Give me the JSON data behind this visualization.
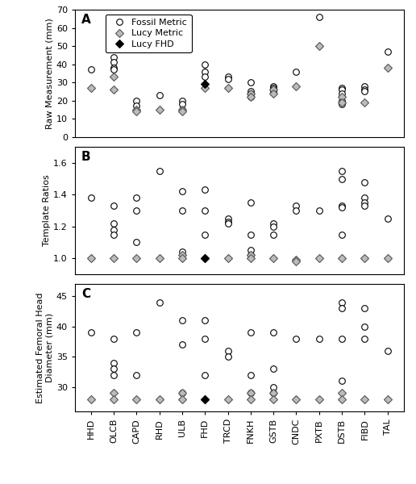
{
  "categories": [
    "HHD",
    "OLCB",
    "CAPD",
    "RHD",
    "ULB",
    "FHD",
    "TRCD",
    "FNKH",
    "GSTB",
    "CNDC",
    "PXTB",
    "DSTB",
    "FIBD",
    "TAL"
  ],
  "panel_A": {
    "fossil": [
      [
        37
      ],
      [
        44,
        41,
        38,
        37
      ],
      [
        20,
        17
      ],
      [
        23
      ],
      [
        20,
        18,
        15
      ],
      [
        40,
        36,
        33
      ],
      [
        33,
        32
      ],
      [
        30,
        25,
        24,
        22
      ],
      [
        28,
        27,
        26,
        25
      ],
      [
        36
      ],
      [
        66
      ],
      [
        27,
        26,
        24,
        20,
        18
      ],
      [
        28,
        26,
        25
      ],
      [
        47
      ]
    ],
    "lucy_metric": [
      [
        27
      ],
      [
        33,
        26
      ],
      [
        15,
        14
      ],
      [
        15
      ],
      [
        15,
        14
      ],
      [
        27
      ],
      [
        27
      ],
      [
        24,
        22
      ],
      [
        26,
        24
      ],
      [
        28
      ],
      [
        50
      ],
      [
        22,
        19
      ],
      [
        19
      ],
      [
        38
      ]
    ],
    "lucy_fhd": [
      null,
      null,
      null,
      null,
      null,
      [
        29
      ],
      null,
      null,
      null,
      null,
      null,
      null,
      null,
      null
    ],
    "ylim": [
      0,
      70
    ],
    "yticks": [
      0,
      10,
      20,
      30,
      40,
      50,
      60,
      70
    ],
    "ylabel": "Raw Measurement (mm)"
  },
  "panel_B": {
    "fossil": [
      [
        1.38
      ],
      [
        1.33,
        1.22,
        1.18,
        1.15
      ],
      [
        1.38,
        1.3,
        1.1
      ],
      [
        1.55
      ],
      [
        1.42,
        1.3,
        1.04
      ],
      [
        1.43,
        1.3,
        1.15
      ],
      [
        1.25,
        1.23,
        1.22
      ],
      [
        1.35,
        1.15,
        1.05,
        1.02
      ],
      [
        1.22,
        1.2,
        1.15
      ],
      [
        1.33,
        1.3
      ],
      [
        1.3
      ],
      [
        1.55,
        1.5,
        1.33,
        1.32,
        1.15
      ],
      [
        1.48,
        1.38,
        1.35,
        1.33
      ],
      [
        1.25
      ]
    ],
    "lucy_metric": [
      [
        1.0
      ],
      [
        1.0
      ],
      [
        1.0
      ],
      [
        1.0
      ],
      [
        1.02,
        1.0
      ],
      [
        1.0
      ],
      [
        1.0
      ],
      [
        1.02,
        1.0
      ],
      [
        1.0
      ],
      [
        0.99,
        0.98
      ],
      [
        1.0
      ],
      [
        1.0
      ],
      [
        1.0
      ],
      [
        1.0
      ]
    ],
    "lucy_fhd": [
      null,
      null,
      null,
      null,
      null,
      [
        1.0
      ],
      null,
      null,
      null,
      null,
      null,
      null,
      null,
      null
    ],
    "ylim": [
      0.9,
      1.7
    ],
    "yticks": [
      1.0,
      1.2,
      1.4,
      1.6
    ],
    "ylabel": "Template Ratios"
  },
  "panel_C": {
    "fossil": [
      [
        39
      ],
      [
        38,
        34,
        33,
        32
      ],
      [
        39,
        32
      ],
      [
        44
      ],
      [
        41,
        37,
        29
      ],
      [
        41,
        38,
        32
      ],
      [
        36,
        35
      ],
      [
        39,
        32,
        29
      ],
      [
        39,
        33,
        30,
        29
      ],
      [
        38
      ],
      [
        38
      ],
      [
        44,
        43,
        38,
        31
      ],
      [
        43,
        40,
        38
      ],
      [
        36
      ]
    ],
    "lucy_metric": [
      [
        28
      ],
      [
        29,
        28
      ],
      [
        28
      ],
      [
        28
      ],
      [
        29,
        28
      ],
      [
        28
      ],
      [
        28
      ],
      [
        29,
        28
      ],
      [
        29,
        28
      ],
      [
        28
      ],
      [
        28
      ],
      [
        29,
        28
      ],
      [
        28
      ],
      [
        28
      ]
    ],
    "lucy_fhd": [
      null,
      null,
      null,
      null,
      null,
      [
        28
      ],
      null,
      null,
      null,
      null,
      null,
      null,
      null,
      null
    ],
    "ylim": [
      26,
      47
    ],
    "yticks": [
      30,
      35,
      40,
      45
    ],
    "ylabel": "Estimated Femoral Head\nDiameter (mm)"
  },
  "fossil_marker": "o",
  "lucy_metric_marker": "D",
  "lucy_fhd_marker": "D",
  "fossil_color": "white",
  "fossil_edgecolor": "black",
  "lucy_metric_color": "#bbbbbb",
  "lucy_metric_edgecolor": "#555555",
  "lucy_fhd_color": "black",
  "lucy_fhd_edgecolor": "black",
  "markersize": 5.5,
  "panel_labels": [
    "A",
    "B",
    "C"
  ],
  "legend_items": [
    "Fossil Metric",
    "Lucy Metric",
    "Lucy FHD"
  ],
  "background_color": "white"
}
